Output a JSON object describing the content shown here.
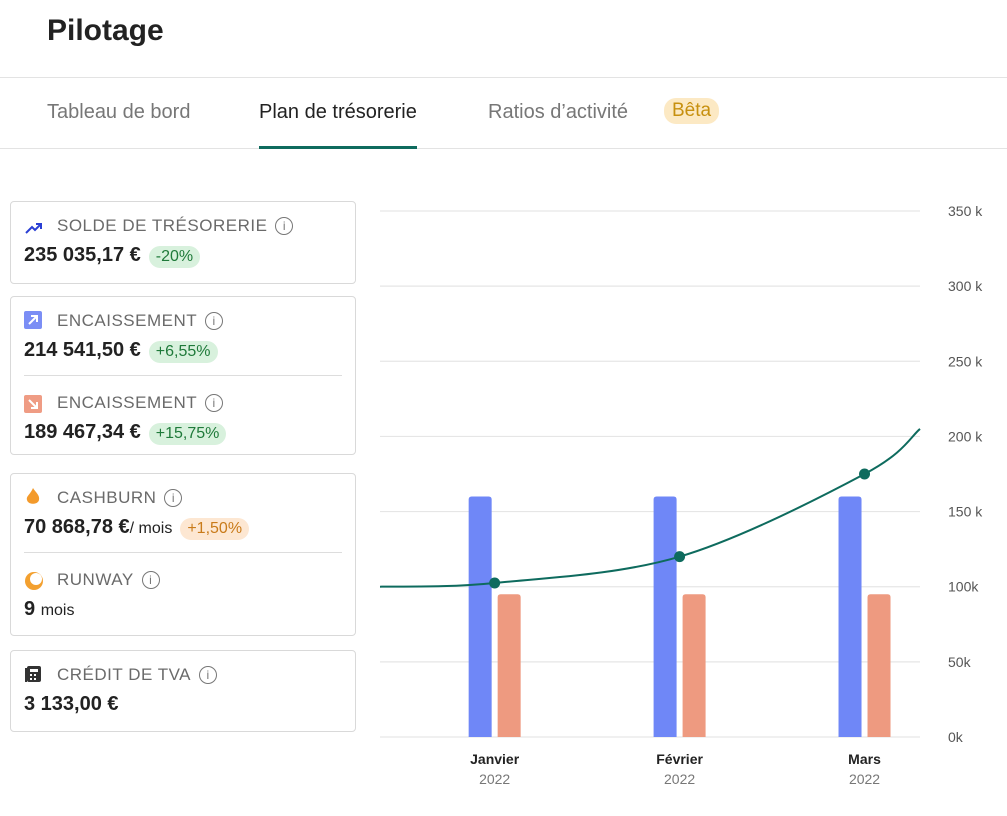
{
  "header": {
    "title": "Pilotage"
  },
  "tabs": {
    "active": 1,
    "items": [
      {
        "label": "Tableau de bord"
      },
      {
        "label": "Plan de trésorerie"
      },
      {
        "label": "Ratios d’activité",
        "badge": "Bêta"
      }
    ]
  },
  "cards": [
    {
      "items": [
        {
          "label": "SOLDE DE TRÉSORERIE",
          "value": "235 035,17 €",
          "change": "-20%"
        }
      ]
    },
    {
      "items": [
        {
          "label": "ENCAISSEMENT",
          "value": "214 541,50 €",
          "change": "+6,55%"
        },
        {
          "label": "ENCAISSEMENT",
          "value": "189 467,34 €",
          "change": "+15,75%"
        }
      ]
    },
    {
      "items": [
        {
          "label": "CASHBURN",
          "value": "70 868,78 €",
          "unit": "/ mois",
          "change": "+1,50%"
        },
        {
          "label": "RUNWAY",
          "value": "9",
          "unit": "mois"
        }
      ]
    },
    {
      "items": [
        {
          "label": "CRÉDIT DE TVA",
          "value": "3 133,00 €"
        }
      ]
    }
  ],
  "chart_data": {
    "type": "bar-line",
    "categories": [
      "Janvier",
      "Février",
      "Mars"
    ],
    "category_years": [
      "2022",
      "2022",
      "2022"
    ],
    "ylim": [
      0,
      350000
    ],
    "yticks": [
      {
        "value": 0,
        "label": "0k"
      },
      {
        "value": 50000,
        "label": "50k"
      },
      {
        "value": 100000,
        "label": "100k"
      },
      {
        "value": 150000,
        "label": "150 k"
      },
      {
        "value": 200000,
        "label": "200 k"
      },
      {
        "value": 250000,
        "label": "250 k"
      },
      {
        "value": 300000,
        "label": "300 k"
      },
      {
        "value": 350000,
        "label": "350 k"
      }
    ],
    "grid": true,
    "xlim": [
      -0.62,
      2.3
    ],
    "series": [
      {
        "color": "#6f87f7",
        "values": [
          160000,
          160000,
          160000
        ]
      },
      {
        "color": "#ee9a80",
        "values": [
          95000,
          95000,
          95000
        ]
      }
    ],
    "line": {
      "color": "#0e6b5e",
      "x": [
        -0.62,
        0,
        1,
        2,
        2.3
      ],
      "values": [
        100000,
        102500,
        120000,
        175000,
        205000
      ],
      "markers": [
        false,
        true,
        true,
        true,
        false
      ]
    }
  }
}
